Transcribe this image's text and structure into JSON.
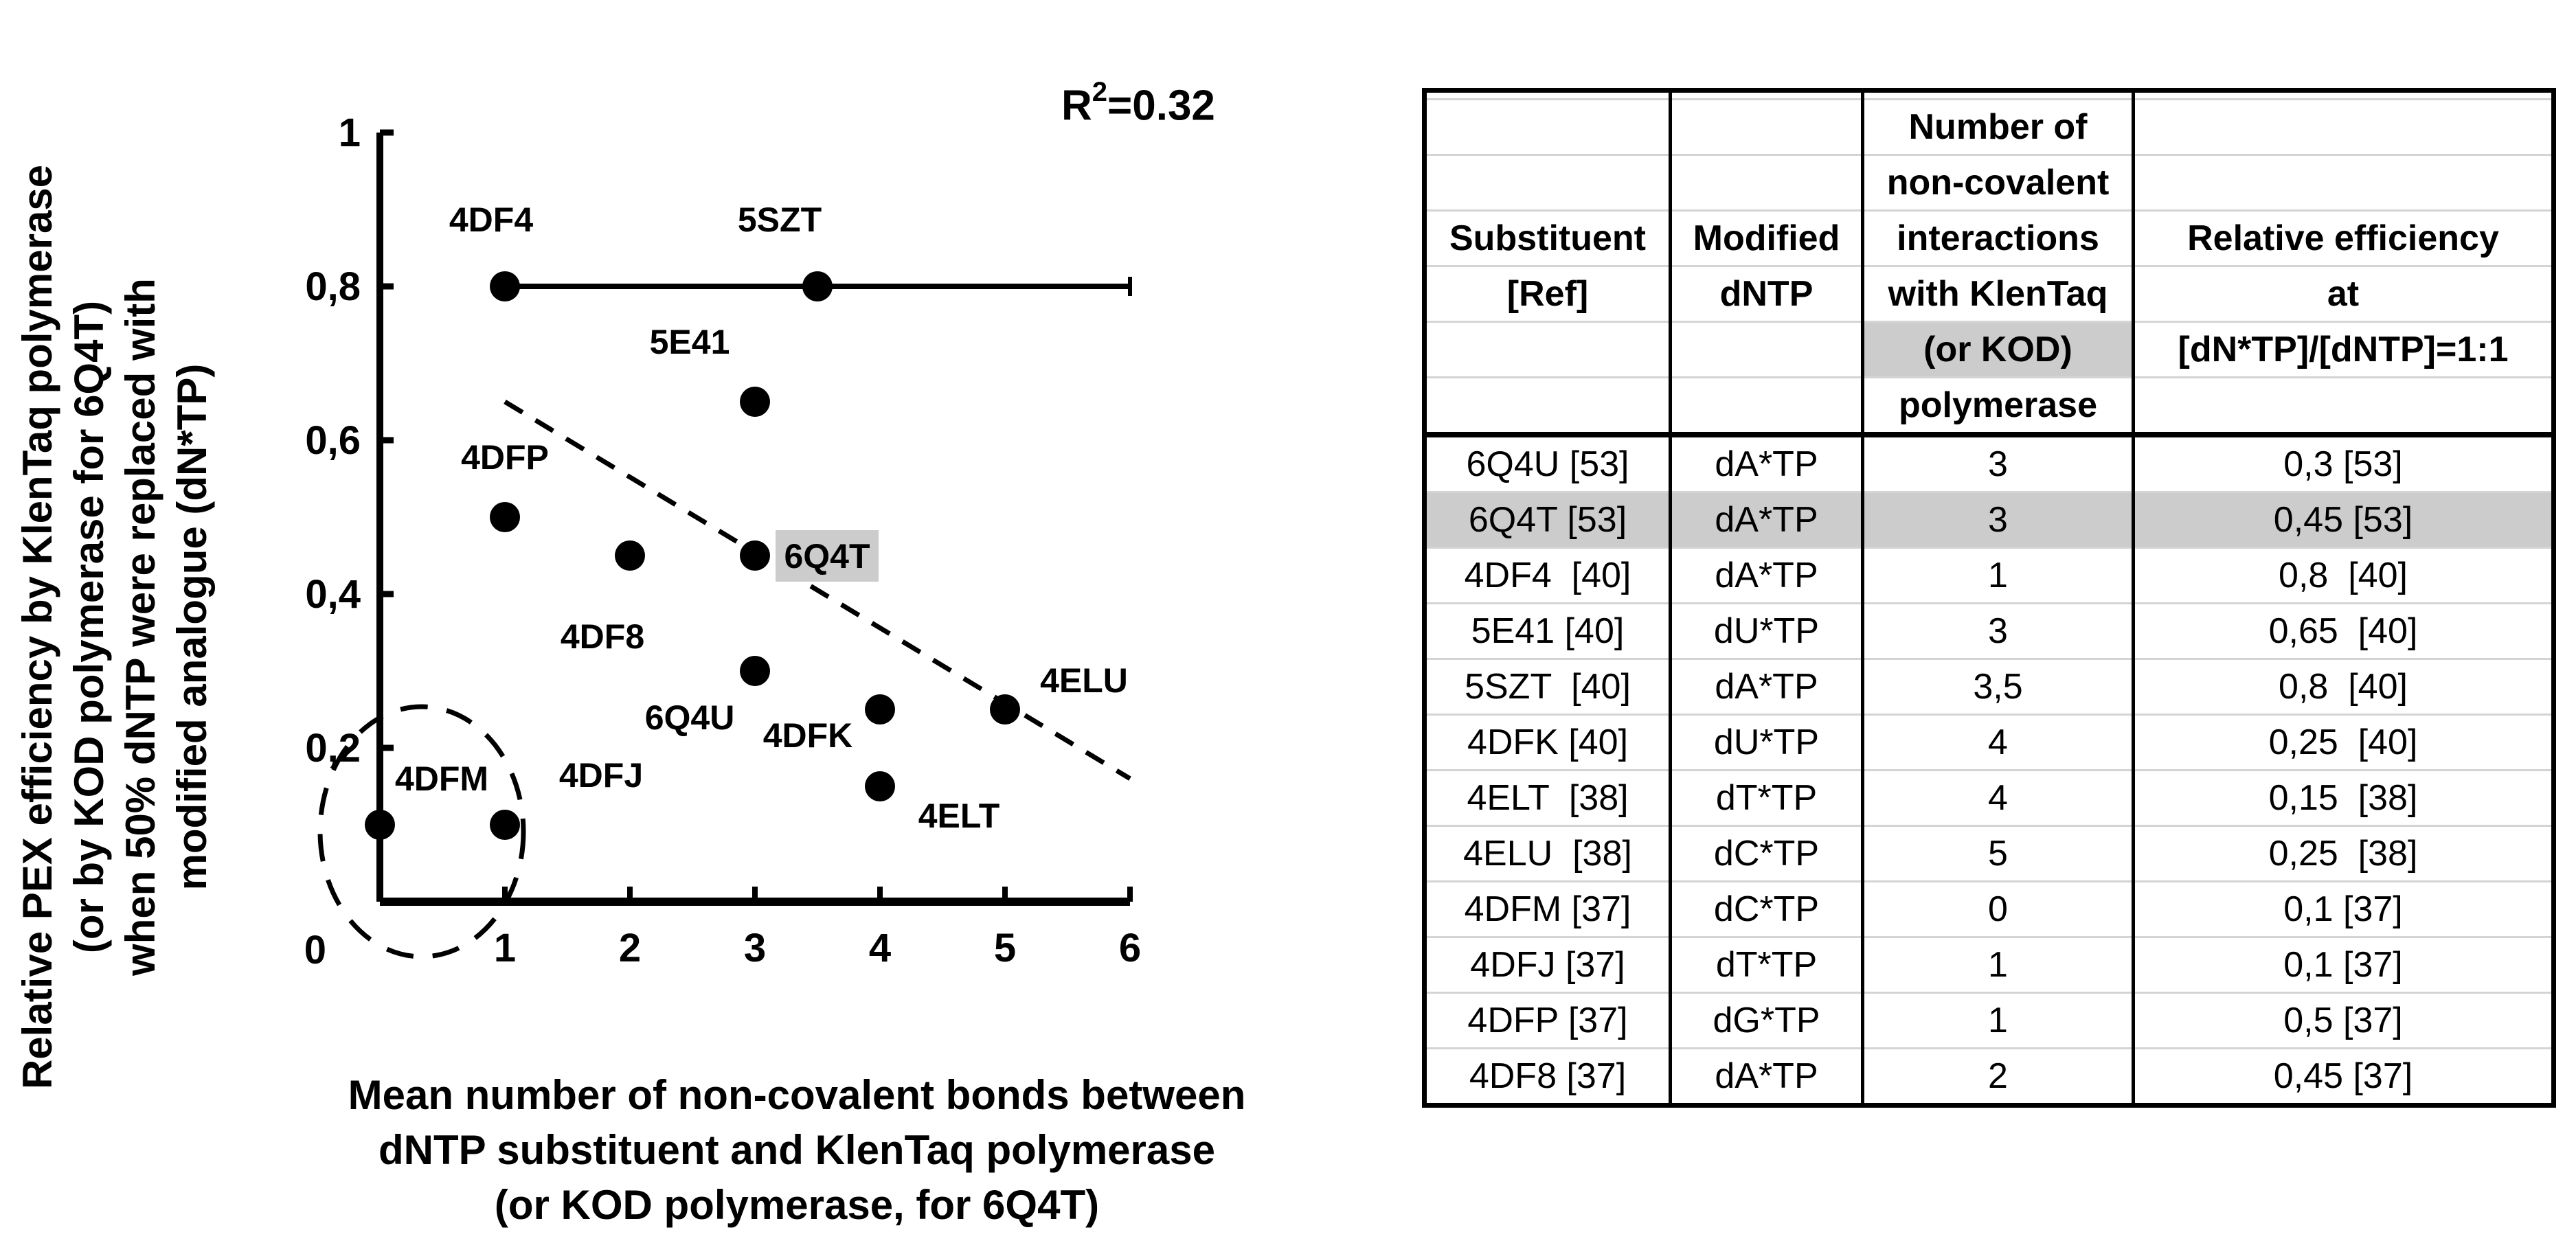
{
  "chart_data": {
    "type": "scatter",
    "title": "",
    "xlabel": "Mean number of non-covalent bonds between dNTP substituent and KlenTaq polymerase (or KOD polymerase, for 6Q4T)",
    "xlabel_lines": [
      "Mean number of non-covalent bonds between",
      "dNTP substituent and KlenTaq polymerase",
      "(or KOD polymerase, for 6Q4T)"
    ],
    "ylabel": "Relative PEX efficiency by KlenTaq polymerase (or by KOD polymerase for 6Q4T) when 50% dNTP were replaced with modified analogue (dN*TP)",
    "ylabel_lines": [
      "Relative PEX efficiency by KlenTaq polymerase",
      "(or by KOD polymerase for 6Q4T)",
      "when 50% dNTP were replaced with",
      "modified analogue (dN*TP)"
    ],
    "xlim": [
      0,
      6
    ],
    "ylim": [
      0,
      1
    ],
    "x_ticks": [
      "1",
      "2",
      "3",
      "4",
      "5",
      "6"
    ],
    "y_ticks": [
      "0",
      "0,2",
      "0,4",
      "0,6",
      "0,8",
      "1"
    ],
    "grid": false,
    "legend": null,
    "annotation": {
      "label": "R",
      "sup": "2",
      "value": "=0.32"
    },
    "points": [
      {
        "label": "6Q4U",
        "x": 3,
        "y": 0.3,
        "highlight": false
      },
      {
        "label": "6Q4T",
        "x": 3,
        "y": 0.45,
        "highlight": true
      },
      {
        "label": "4DF4",
        "x": 1,
        "y": 0.8,
        "highlight": false
      },
      {
        "label": "5E41",
        "x": 3,
        "y": 0.65,
        "highlight": false
      },
      {
        "label": "5SZT",
        "x": 3.5,
        "y": 0.8,
        "highlight": false
      },
      {
        "label": "4DFK",
        "x": 4,
        "y": 0.25,
        "highlight": false
      },
      {
        "label": "4ELT",
        "x": 4,
        "y": 0.15,
        "highlight": false
      },
      {
        "label": "4ELU",
        "x": 5,
        "y": 0.25,
        "highlight": false
      },
      {
        "label": "4DFM",
        "x": 0,
        "y": 0.1,
        "highlight": false
      },
      {
        "label": "4DFJ",
        "x": 1,
        "y": 0.1,
        "highlight": false
      },
      {
        "label": "4DFP",
        "x": 1,
        "y": 0.5,
        "highlight": false
      },
      {
        "label": "4DF8",
        "x": 2,
        "y": 0.45,
        "highlight": false
      }
    ],
    "error_bar": {
      "y": 0.8,
      "x_from": 1,
      "x_to": 6
    },
    "trendline": {
      "style": "dashed",
      "x1": 1,
      "y1": 0.65,
      "x2": 6,
      "y2": 0.16
    },
    "circled_region": {
      "cx": 0.5,
      "cy": 0.1,
      "note": "dashed ellipse around 4DFM and 4DFJ"
    }
  },
  "table": {
    "headers": [
      {
        "lines": [
          "",
          "",
          "Substituent",
          "[Ref]",
          "",
          ""
        ]
      },
      {
        "lines": [
          "",
          "",
          "Modified",
          "dNTP",
          "",
          ""
        ]
      },
      {
        "lines": [
          "Number of",
          "non-covalent",
          "interactions",
          "with KlenTaq",
          "(or KOD)",
          "polymerase"
        ],
        "highlight_line": 4
      },
      {
        "lines": [
          "",
          "",
          "Relative efficiency",
          "at",
          "[dN*TP]/[dNTP]=1:1",
          ""
        ]
      }
    ],
    "rows": [
      {
        "substituent": "6Q4U [53]",
        "dntp": "dA*TP",
        "interactions": "3",
        "efficiency": "0,3 [53]",
        "highlight": false
      },
      {
        "substituent": "6Q4T [53]",
        "dntp": "dA*TP",
        "interactions": "3",
        "efficiency": "0,45 [53]",
        "highlight": true
      },
      {
        "substituent": "4DF4  [40]",
        "dntp": "dA*TP",
        "interactions": "1",
        "efficiency": "0,8  [40]",
        "highlight": false
      },
      {
        "substituent": "5E41 [40]",
        "dntp": "dU*TP",
        "interactions": "3",
        "efficiency": "0,65  [40]",
        "highlight": false
      },
      {
        "substituent": "5SZT  [40]",
        "dntp": "dA*TP",
        "interactions": "3,5",
        "efficiency": "0,8  [40]",
        "highlight": false
      },
      {
        "substituent": "4DFK [40]",
        "dntp": "dU*TP",
        "interactions": "4",
        "efficiency": "0,25  [40]",
        "highlight": false
      },
      {
        "substituent": "4ELT  [38]",
        "dntp": "dT*TP",
        "interactions": "4",
        "efficiency": "0,15  [38]",
        "highlight": false
      },
      {
        "substituent": "4ELU  [38]",
        "dntp": "dC*TP",
        "interactions": "5",
        "efficiency": "0,25  [38]",
        "highlight": false
      },
      {
        "substituent": "4DFM [37]",
        "dntp": "dC*TP",
        "interactions": "0",
        "efficiency": "0,1 [37]",
        "highlight": false
      },
      {
        "substituent": "4DFJ [37]",
        "dntp": "dT*TP",
        "interactions": "1",
        "efficiency": "0,1 [37]",
        "highlight": false
      },
      {
        "substituent": "4DFP [37]",
        "dntp": "dG*TP",
        "interactions": "1",
        "efficiency": "0,5 [37]",
        "highlight": false
      },
      {
        "substituent": "4DF8 [37]",
        "dntp": "dA*TP",
        "interactions": "2",
        "efficiency": "0,45 [37]",
        "highlight": false
      }
    ]
  },
  "colors": {
    "ink": "#000000",
    "highlight": "#cccccc",
    "rule_light": "#d4d4d4",
    "background": "#ffffff"
  }
}
